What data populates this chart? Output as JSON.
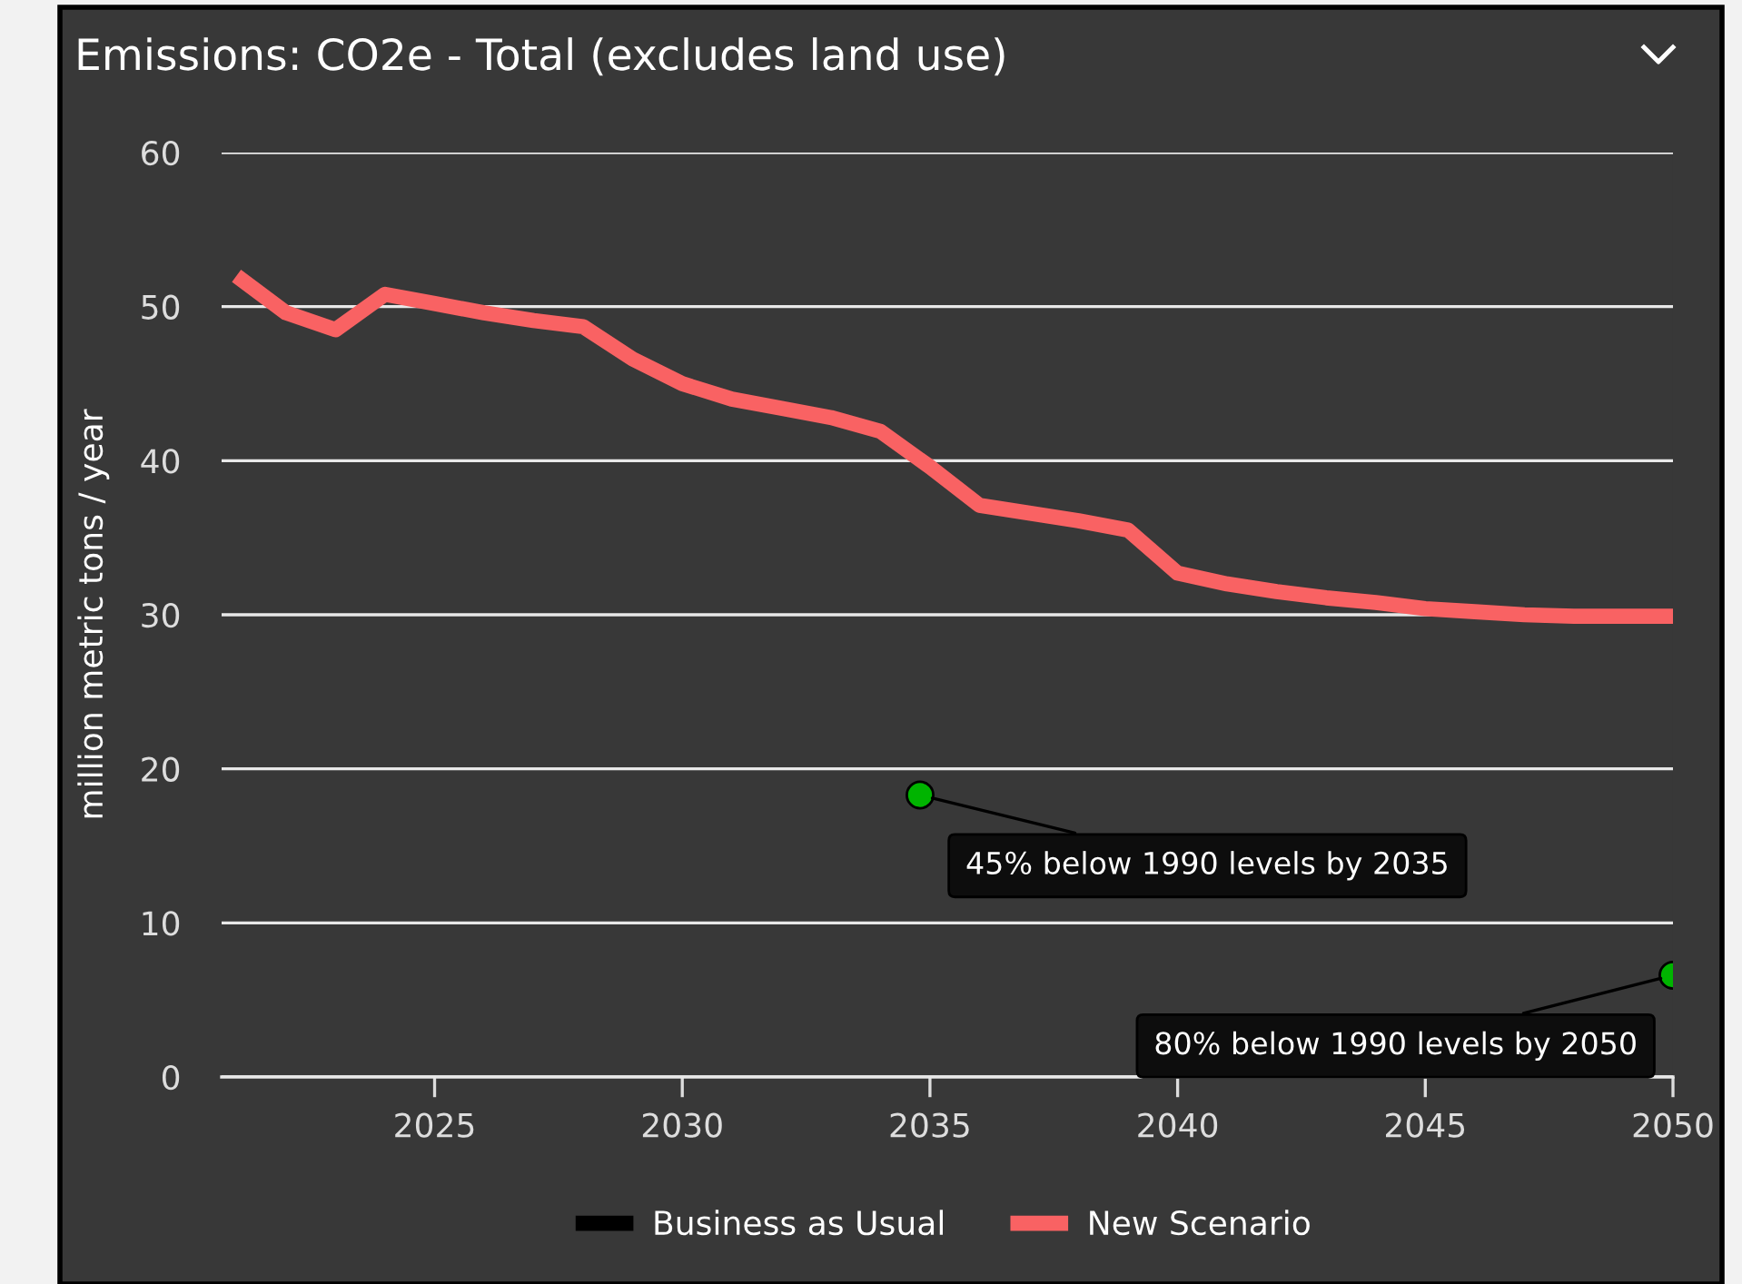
{
  "chart_data": {
    "type": "line",
    "title": "Emissions: CO2e - Total (excludes land use)",
    "ylabel": "million metric tons / year",
    "x": [
      2021,
      2022,
      2023,
      2024,
      2025,
      2026,
      2027,
      2028,
      2029,
      2030,
      2031,
      2032,
      2033,
      2034,
      2035,
      2036,
      2037,
      2038,
      2039,
      2040,
      2041,
      2042,
      2043,
      2044,
      2045,
      2046,
      2047,
      2048,
      2049,
      2050
    ],
    "series": [
      {
        "name": "Business as Usual",
        "color": "#000000",
        "values": [
          null,
          null,
          null,
          null,
          null,
          null,
          null,
          null,
          null,
          null,
          null,
          null,
          null,
          null,
          null,
          null,
          null,
          null,
          null,
          null,
          null,
          null,
          null,
          null,
          null,
          null,
          null,
          null,
          null,
          null
        ]
      },
      {
        "name": "New Scenario",
        "color": "#f96263",
        "values": [
          52.0,
          49.6,
          48.5,
          50.8,
          50.2,
          49.6,
          49.1,
          48.7,
          46.6,
          45.0,
          44.0,
          43.4,
          42.8,
          41.9,
          39.6,
          37.1,
          36.6,
          36.1,
          35.5,
          32.7,
          32.0,
          31.5,
          31.1,
          30.8,
          30.4,
          30.2,
          30.0,
          29.9,
          29.9,
          29.9
        ]
      },
      {
        "type": "scatter",
        "color": "#00b400",
        "x": [
          2034.8,
          2050
        ],
        "values": [
          18.3,
          6.6
        ]
      }
    ],
    "annotations": [
      {
        "text": "45% below 1990 levels by 2035",
        "x": 2034.8,
        "y": 18.3
      },
      {
        "text": "80% below 1990 levels by 2050",
        "x": 2050,
        "y": 6.6
      }
    ],
    "xlim": [
      2020.7,
      2050
    ],
    "xticks": [
      2025,
      2030,
      2035,
      2040,
      2045,
      2050
    ],
    "ylim": [
      0,
      60
    ],
    "yticks": [
      0,
      10,
      20,
      30,
      40,
      50,
      60
    ],
    "grid": "y",
    "legend": "bottom",
    "line_style": "solid"
  }
}
